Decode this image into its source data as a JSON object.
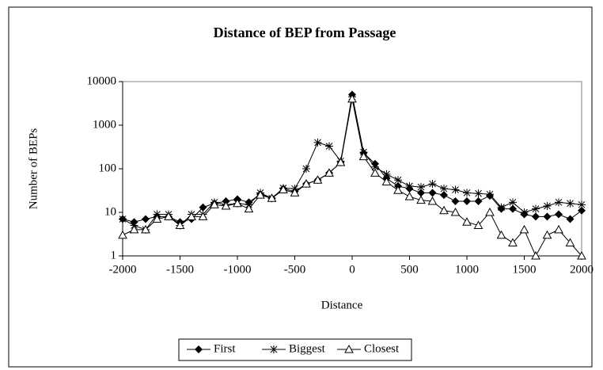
{
  "chart_data": {
    "type": "line",
    "title": "Distance of BEP from Passage",
    "xlabel": "Distance",
    "ylabel": "Number of BEPs",
    "x": [
      -2000,
      -1900,
      -1800,
      -1700,
      -1600,
      -1500,
      -1400,
      -1300,
      -1200,
      -1100,
      -1000,
      -900,
      -800,
      -700,
      -600,
      -500,
      -400,
      -300,
      -200,
      -100,
      0,
      100,
      200,
      300,
      400,
      500,
      600,
      700,
      800,
      900,
      1000,
      1100,
      1200,
      1300,
      1400,
      1500,
      1600,
      1700,
      1800,
      1900,
      2000
    ],
    "series": [
      {
        "name": "First",
        "color": "#000000",
        "marker": "diamond",
        "values": [
          7,
          6,
          7,
          8,
          8,
          6,
          7,
          13,
          16,
          18,
          20,
          17,
          26,
          21,
          35,
          30,
          45,
          55,
          80,
          140,
          5000,
          230,
          130,
          60,
          40,
          35,
          28,
          28,
          25,
          18,
          18,
          18,
          24,
          12,
          12,
          9,
          8,
          8,
          9,
          7,
          11
        ]
      },
      {
        "name": "Biggest",
        "color": "#000000",
        "marker": "star",
        "values": [
          7,
          5,
          4,
          9,
          9,
          5,
          9,
          9,
          17,
          15,
          16,
          15,
          28,
          21,
          36,
          35,
          100,
          400,
          330,
          150,
          4500,
          240,
          110,
          75,
          55,
          40,
          38,
          45,
          35,
          33,
          28,
          27,
          26,
          13,
          17,
          10,
          12,
          14,
          17,
          16,
          15
        ]
      },
      {
        "name": "Closest",
        "color": "#000000",
        "marker": "triangle",
        "values": [
          3,
          4,
          4,
          7,
          8,
          5,
          8,
          8,
          15,
          14,
          16,
          12,
          25,
          21,
          33,
          28,
          45,
          55,
          80,
          140,
          4000,
          190,
          80,
          50,
          32,
          23,
          19,
          18,
          11,
          10,
          6,
          5,
          10,
          3,
          2,
          4,
          1,
          3,
          4,
          2,
          1
        ]
      }
    ],
    "xlim": [
      -2000,
      2000
    ],
    "xticks": [
      -2000,
      -1500,
      -1000,
      -500,
      0,
      500,
      1000,
      1500,
      2000
    ],
    "ylim": [
      1,
      10000
    ],
    "yticks": [
      1,
      10,
      100,
      1000,
      10000
    ],
    "ylog": true,
    "grid": false,
    "legend": "bottom"
  }
}
